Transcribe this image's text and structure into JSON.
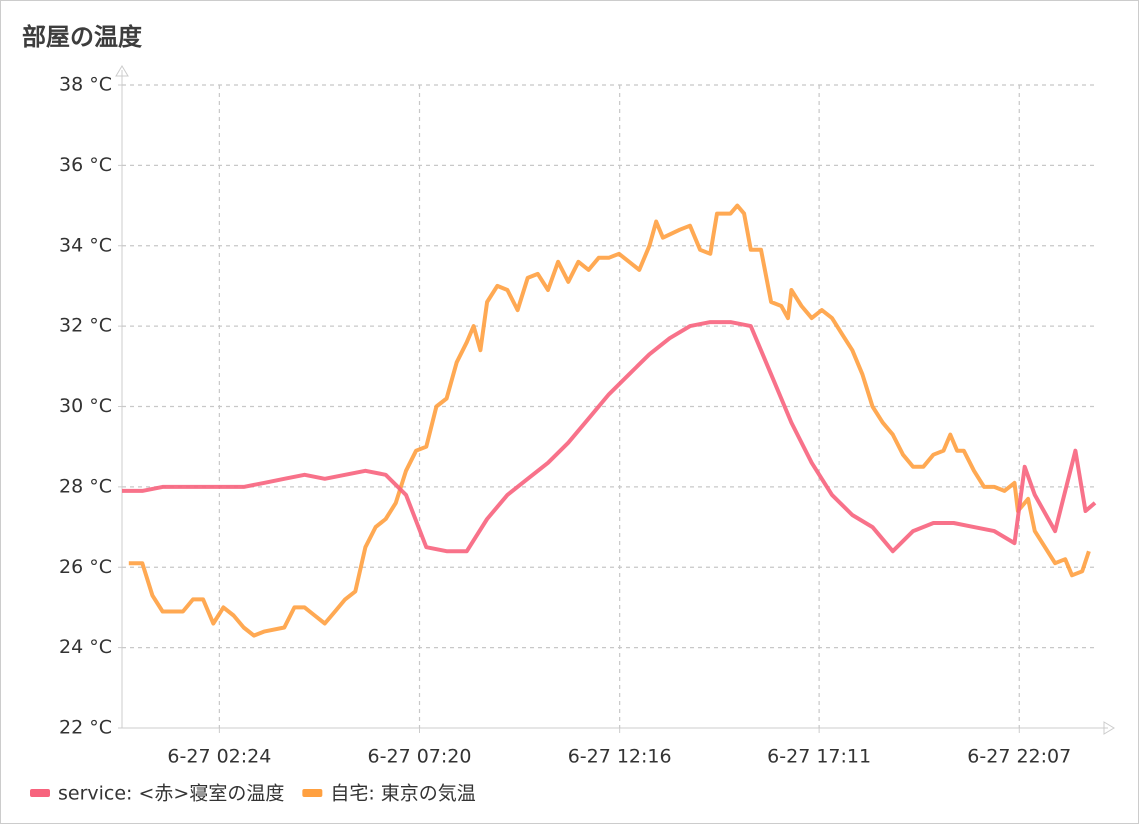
{
  "chart_data": {
    "type": "line",
    "title": "部屋の温度",
    "xlim": [
      "6-27 00:00",
      "6-27 23:59"
    ],
    "xticks": [
      "6-27 02:24",
      "6-27 07:20",
      "6-27 12:16",
      "6-27 17:11",
      "6-27 22:07"
    ],
    "ylim": [
      22,
      38
    ],
    "yticks": [
      {
        "value": 22,
        "label": "22 °C"
      },
      {
        "value": 24,
        "label": "24 °C"
      },
      {
        "value": 26,
        "label": "26 °C"
      },
      {
        "value": 28,
        "label": "28 °C"
      },
      {
        "value": 30,
        "label": "30 °C"
      },
      {
        "value": 32,
        "label": "32 °C"
      },
      {
        "value": 34,
        "label": "34 °C"
      },
      {
        "value": 36,
        "label": "36 °C"
      },
      {
        "value": 38,
        "label": "38 °C"
      }
    ],
    "grid": true,
    "legend": "bottom-left",
    "series": [
      {
        "name": "service: <赤>寝室の温度",
        "color": "#f7637d",
        "x": [
          "6-27 00:00",
          "6-27 00:30",
          "6-27 01:00",
          "6-27 01:30",
          "6-27 02:00",
          "6-27 02:30",
          "6-27 03:00",
          "6-27 03:30",
          "6-27 04:00",
          "6-27 04:30",
          "6-27 05:00",
          "6-27 05:30",
          "6-27 06:00",
          "6-27 06:30",
          "6-27 07:00",
          "6-27 07:30",
          "6-27 08:00",
          "6-27 08:30",
          "6-27 09:00",
          "6-27 09:30",
          "6-27 10:00",
          "6-27 10:30",
          "6-27 11:00",
          "6-27 11:30",
          "6-27 12:00",
          "6-27 12:30",
          "6-27 13:00",
          "6-27 13:30",
          "6-27 14:00",
          "6-27 14:30",
          "6-27 15:00",
          "6-27 15:30",
          "6-27 16:00",
          "6-27 16:30",
          "6-27 17:00",
          "6-27 17:30",
          "6-27 18:00",
          "6-27 18:30",
          "6-27 19:00",
          "6-27 19:30",
          "6-27 20:00",
          "6-27 20:30",
          "6-27 21:00",
          "6-27 21:30",
          "6-27 22:00",
          "6-27 22:15",
          "6-27 22:30",
          "6-27 23:00",
          "6-27 23:30",
          "6-27 23:45",
          "6-27 23:59"
        ],
        "values": [
          27.9,
          27.9,
          28.0,
          28.0,
          28.0,
          28.0,
          28.0,
          28.1,
          28.2,
          28.3,
          28.2,
          28.3,
          28.4,
          28.3,
          27.8,
          26.5,
          26.4,
          26.4,
          27.2,
          27.8,
          28.2,
          28.6,
          29.1,
          29.7,
          30.3,
          30.8,
          31.3,
          31.7,
          32.0,
          32.1,
          32.1,
          32.0,
          30.8,
          29.6,
          28.6,
          27.8,
          27.3,
          27.0,
          26.4,
          26.9,
          27.1,
          27.1,
          27.0,
          26.9,
          26.6,
          28.5,
          27.8,
          26.9,
          28.9,
          27.4,
          27.6
        ]
      },
      {
        "name": "自宅: 東京の気温",
        "color": "#ffa040",
        "x": [
          "6-27 00:10",
          "6-27 00:30",
          "6-27 00:45",
          "6-27 01:00",
          "6-27 01:30",
          "6-27 01:45",
          "6-27 02:00",
          "6-27 02:15",
          "6-27 02:30",
          "6-27 02:45",
          "6-27 03:00",
          "6-27 03:15",
          "6-27 03:30",
          "6-27 04:00",
          "6-27 04:15",
          "6-27 04:30",
          "6-27 04:45",
          "6-27 05:00",
          "6-27 05:15",
          "6-27 05:30",
          "6-27 05:45",
          "6-27 06:00",
          "6-27 06:15",
          "6-27 06:30",
          "6-27 06:45",
          "6-27 07:00",
          "6-27 07:15",
          "6-27 07:30",
          "6-27 07:45",
          "6-27 08:00",
          "6-27 08:15",
          "6-27 08:30",
          "6-27 08:40",
          "6-27 08:50",
          "6-27 09:00",
          "6-27 09:15",
          "6-27 09:30",
          "6-27 09:45",
          "6-27 10:00",
          "6-27 10:15",
          "6-27 10:30",
          "6-27 10:45",
          "6-27 11:00",
          "6-27 11:15",
          "6-27 11:30",
          "6-27 11:45",
          "6-27 12:00",
          "6-27 12:15",
          "6-27 12:30",
          "6-27 12:45",
          "6-27 13:00",
          "6-27 13:10",
          "6-27 13:20",
          "6-27 13:45",
          "6-27 14:00",
          "6-27 14:15",
          "6-27 14:30",
          "6-27 14:40",
          "6-27 15:00",
          "6-27 15:10",
          "6-27 15:20",
          "6-27 15:30",
          "6-27 15:45",
          "6-27 16:00",
          "6-27 16:15",
          "6-27 16:25",
          "6-27 16:30",
          "6-27 16:45",
          "6-27 17:00",
          "6-27 17:15",
          "6-27 17:30",
          "6-27 17:45",
          "6-27 18:00",
          "6-27 18:15",
          "6-27 18:30",
          "6-27 18:45",
          "6-27 19:00",
          "6-27 19:15",
          "6-27 19:30",
          "6-27 19:45",
          "6-27 20:00",
          "6-27 20:15",
          "6-27 20:25",
          "6-27 20:35",
          "6-27 20:45",
          "6-27 21:00",
          "6-27 21:15",
          "6-27 21:30",
          "6-27 21:45",
          "6-27 22:00",
          "6-27 22:05",
          "6-27 22:20",
          "6-27 22:30",
          "6-27 22:45",
          "6-27 23:00",
          "6-27 23:15",
          "6-27 23:25",
          "6-27 23:40",
          "6-27 23:50"
        ],
        "values": [
          26.1,
          26.1,
          25.3,
          24.9,
          24.9,
          25.2,
          25.2,
          24.6,
          25.0,
          24.8,
          24.5,
          24.3,
          24.4,
          24.5,
          25.0,
          25.0,
          24.8,
          24.6,
          24.9,
          25.2,
          25.4,
          26.5,
          27.0,
          27.2,
          27.6,
          28.4,
          28.9,
          29.0,
          30.0,
          30.2,
          31.1,
          31.6,
          32.0,
          31.4,
          32.6,
          33.0,
          32.9,
          32.4,
          33.2,
          33.3,
          32.9,
          33.6,
          33.1,
          33.6,
          33.4,
          33.7,
          33.7,
          33.8,
          33.6,
          33.4,
          34.0,
          34.6,
          34.2,
          34.4,
          34.5,
          33.9,
          33.8,
          34.8,
          34.8,
          35.0,
          34.8,
          33.9,
          33.9,
          32.6,
          32.5,
          32.2,
          32.9,
          32.5,
          32.2,
          32.4,
          32.2,
          31.8,
          31.4,
          30.8,
          30.0,
          29.6,
          29.3,
          28.8,
          28.5,
          28.5,
          28.8,
          28.9,
          29.3,
          28.9,
          28.9,
          28.4,
          28.0,
          28.0,
          27.9,
          28.1,
          27.4,
          27.7,
          26.9,
          26.5,
          26.1,
          26.2,
          25.8,
          25.9,
          26.4
        ]
      }
    ]
  }
}
